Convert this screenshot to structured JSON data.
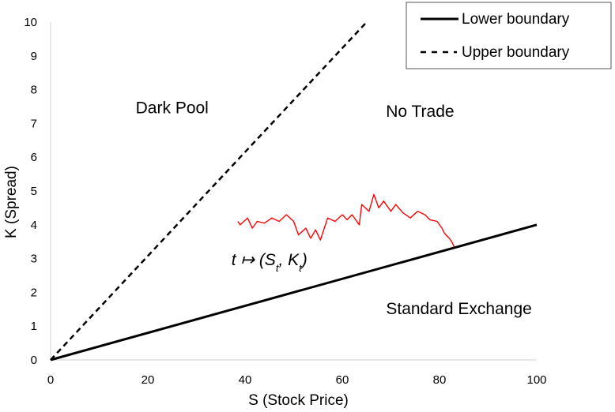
{
  "chart_data": {
    "type": "line",
    "xlabel": "S (Stock Price)",
    "ylabel": "K (Spread)",
    "xlim": [
      0,
      100
    ],
    "ylim": [
      0,
      10
    ],
    "x_ticks": [
      "0",
      "20",
      "40",
      "60",
      "80",
      "100"
    ],
    "y_ticks": [
      "0",
      "1",
      "2",
      "3",
      "4",
      "5",
      "6",
      "7",
      "8",
      "9",
      "10"
    ],
    "legend": {
      "placement": "top-right",
      "entries": [
        {
          "label": "Lower boundary",
          "style": "solid",
          "color": "#000000"
        },
        {
          "label": "Upper boundary",
          "style": "dashed",
          "color": "#000000"
        }
      ]
    },
    "series": [
      {
        "name": "Lower boundary",
        "style": "solid",
        "color": "#000000",
        "x": [
          0,
          100
        ],
        "y": [
          0,
          4
        ]
      },
      {
        "name": "Upper boundary",
        "style": "dashed",
        "color": "#000000",
        "x": [
          0,
          65
        ],
        "y": [
          0,
          10
        ]
      },
      {
        "style": "path",
        "color": "#ff0000",
        "x": [
          38.5,
          39.0,
          40.5,
          41.5,
          42.5,
          44.0,
          45.5,
          47.0,
          48.5,
          50.0,
          51.0,
          52.5,
          53.5,
          54.5,
          55.5,
          57.0,
          58.5,
          60.0,
          61.0,
          62.0,
          63.5,
          64.0,
          65.5,
          66.5,
          67.5,
          68.5,
          70.0,
          71.0,
          72.5,
          74.0,
          75.5,
          77.0,
          78.0,
          79.5,
          80.5,
          81.0,
          82.0,
          82.5,
          83.0
        ],
        "y": [
          4.1,
          4.0,
          4.2,
          3.9,
          4.1,
          4.05,
          4.2,
          4.1,
          4.3,
          4.1,
          3.7,
          3.9,
          3.6,
          3.85,
          3.55,
          4.2,
          4.1,
          4.3,
          4.15,
          4.3,
          4.0,
          4.6,
          4.4,
          4.9,
          4.5,
          4.7,
          4.4,
          4.6,
          4.35,
          4.2,
          4.4,
          4.3,
          4.15,
          4.1,
          3.9,
          3.75,
          3.6,
          3.5,
          3.35
        ]
      }
    ],
    "annotations": [
      {
        "text": "Dark Pool",
        "x": 25,
        "y": 7.3
      },
      {
        "text": "No Trade",
        "x": 76,
        "y": 7.2
      },
      {
        "text": "Standard Exchange",
        "x": 84,
        "y": 1.35
      },
      {
        "text": "t ↦ (S",
        "x": 45,
        "y": 2.8
      }
    ]
  }
}
